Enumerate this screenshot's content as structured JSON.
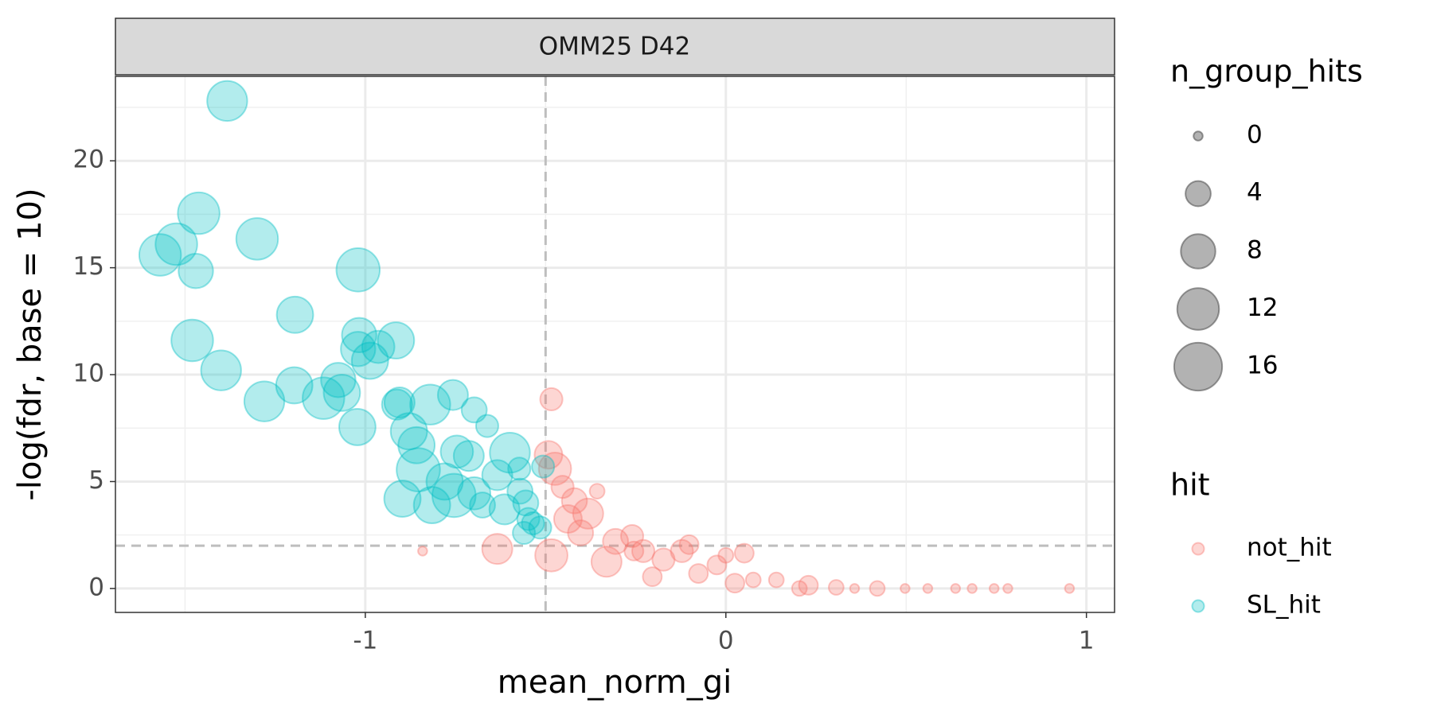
{
  "chart_data": {
    "type": "scatter",
    "facet_title": "OMM25 D42",
    "x_label": "mean_norm_gi",
    "y_label": "-log(fdr, base = 10)",
    "xlim": [
      -1.693,
      1.078
    ],
    "xticks": [
      -1,
      0,
      1
    ],
    "ylim": [
      -1.12,
      23.95
    ],
    "yticks": [
      0,
      5,
      10,
      15,
      20
    ],
    "grid": true,
    "reference_lines": {
      "x": -0.5,
      "y": 2
    },
    "size_legend": {
      "title": "n_group_hits",
      "values": [
        0,
        4,
        8,
        12,
        16
      ]
    },
    "color_legend_title": "hit",
    "series": [
      {
        "name": "not_hit",
        "color": "#F8766D",
        "x": [
          -0.484,
          -0.492,
          -0.474,
          -0.484,
          -0.634,
          -0.841,
          -0.453,
          -0.42,
          -0.438,
          -0.382,
          -0.357,
          -0.403,
          -0.331,
          -0.306,
          -0.26,
          -0.229,
          -0.204,
          -0.173,
          -0.122,
          -0.102,
          -0.076,
          -0.025,
          0.0,
          0.051,
          0.025,
          0.076,
          0.14,
          0.229,
          0.306,
          0.42,
          0.497,
          0.56,
          0.637,
          0.683,
          0.744,
          0.782,
          0.953,
          0.204,
          0.357,
          -0.255
        ],
        "values": [
          8.85,
          6.25,
          5.6,
          1.55,
          1.85,
          1.75,
          4.75,
          4.1,
          3.25,
          3.5,
          4.55,
          2.6,
          1.25,
          2.2,
          2.45,
          1.75,
          0.55,
          1.35,
          1.75,
          2.05,
          0.7,
          1.1,
          1.55,
          1.65,
          0.25,
          0.4,
          0.4,
          0.15,
          0.05,
          0,
          0,
          0,
          0,
          0,
          0,
          0,
          0,
          0,
          0,
          1.75
        ],
        "sizes": [
          3,
          5,
          7,
          7,
          6,
          0,
          3,
          4,
          5,
          6,
          1,
          4,
          6,
          4,
          3,
          3,
          2,
          3,
          3,
          2,
          2,
          2,
          1,
          2,
          2,
          1,
          1,
          2,
          1,
          1,
          0,
          0,
          0,
          0,
          0,
          0,
          0,
          1,
          0,
          2
        ]
      },
      {
        "name": "SL_hit",
        "color": "#00BFC4",
        "x": [
          -1.383,
          -1.462,
          -1.524,
          -1.569,
          -1.47,
          -1.3,
          -1.02,
          -1.195,
          -1.48,
          -1.4,
          -1.017,
          -1.02,
          -0.987,
          -0.964,
          -0.915,
          -1.28,
          -1.197,
          -1.116,
          -1.075,
          -1.065,
          -1.022,
          -0.912,
          -0.905,
          -0.82,
          -0.757,
          -0.698,
          -0.662,
          -0.879,
          -0.858,
          -0.853,
          -0.897,
          -0.815,
          -0.754,
          -0.746,
          -0.713,
          -0.78,
          -0.698,
          -0.675,
          -0.634,
          -0.599,
          -0.614,
          -0.571,
          -0.555,
          -0.548,
          -0.56,
          -0.535,
          -0.515,
          -0.573,
          -0.507
        ],
        "values": [
          22.8,
          17.55,
          16.1,
          15.6,
          14.85,
          16.35,
          14.9,
          12.8,
          11.6,
          10.2,
          11.85,
          11.2,
          10.65,
          11.3,
          11.6,
          8.75,
          9.5,
          8.9,
          9.75,
          9.15,
          7.55,
          8.6,
          8.7,
          8.6,
          9.05,
          8.35,
          7.6,
          7.35,
          6.7,
          5.55,
          4.2,
          3.9,
          4.35,
          6.4,
          6.2,
          5.0,
          4.45,
          3.9,
          5.3,
          6.35,
          3.7,
          4.55,
          4.0,
          3.25,
          2.6,
          3.05,
          2.85,
          5.6,
          5.7
        ],
        "sizes": [
          11,
          12,
          12,
          12,
          8,
          12,
          13,
          9,
          12,
          11,
          8,
          8,
          9,
          7,
          9,
          11,
          9,
          12,
          8,
          9,
          9,
          6,
          6,
          11,
          6,
          4,
          3,
          9,
          9,
          13,
          9,
          9,
          13,
          7,
          6,
          9,
          7,
          4,
          6,
          11,
          6,
          4,
          4,
          3,
          3,
          3,
          3,
          3,
          3
        ]
      }
    ]
  }
}
